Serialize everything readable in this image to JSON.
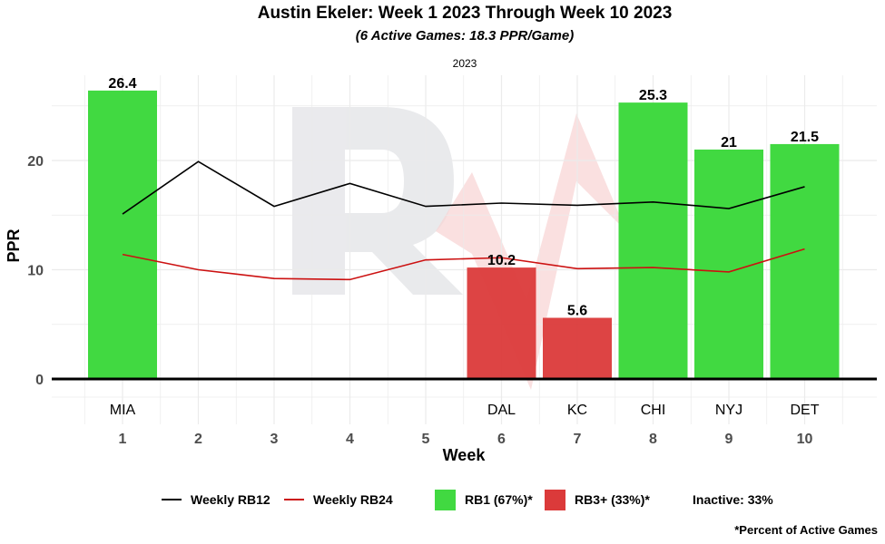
{
  "title": "Austin Ekeler: Week 1 2023 Through Week 10 2023",
  "subtitle": "(6 Active Games: 18.3 PPR/Game)",
  "facet_label": "2023",
  "footnote": "*Percent of Active Games",
  "colors": {
    "rb1": "#41d941",
    "rb3": "#db3a3a",
    "rb12_line": "#000000",
    "rb24_line": "#cc1111",
    "grid": "#ebebeb"
  },
  "legend": {
    "rb12": "Weekly RB12",
    "rb24": "Weekly RB24",
    "rb1": "RB1 (67%)*",
    "rb3": "RB3+ (33%)*",
    "inactive": "Inactive: 33%"
  },
  "chart_data": {
    "type": "bar",
    "xlabel": "Week",
    "ylabel": "PPR",
    "ylim": [
      0,
      27.5
    ],
    "yticks": [
      0,
      10,
      20
    ],
    "weeks": [
      1,
      2,
      3,
      4,
      5,
      6,
      7,
      8,
      9,
      10
    ],
    "opponents": [
      "MIA",
      "",
      "",
      "",
      "",
      "DAL",
      "KC",
      "CHI",
      "NYJ",
      "DET"
    ],
    "bars": [
      {
        "week": 1,
        "value": 26.4,
        "label": "26.4",
        "tier": "rb1"
      },
      {
        "week": 6,
        "value": 10.2,
        "label": "10.2",
        "tier": "rb3"
      },
      {
        "week": 7,
        "value": 5.6,
        "label": "5.6",
        "tier": "rb3"
      },
      {
        "week": 8,
        "value": 25.3,
        "label": "25.3",
        "tier": "rb1"
      },
      {
        "week": 9,
        "value": 21.0,
        "label": "21",
        "tier": "rb1"
      },
      {
        "week": 10,
        "value": 21.5,
        "label": "21.5",
        "tier": "rb1"
      }
    ],
    "series": [
      {
        "name": "Weekly RB12",
        "values": [
          15.1,
          19.9,
          15.8,
          17.9,
          15.8,
          16.1,
          15.9,
          16.2,
          15.6,
          17.6
        ]
      },
      {
        "name": "Weekly RB24",
        "values": [
          11.4,
          10.0,
          9.2,
          9.1,
          10.9,
          11.1,
          10.1,
          10.2,
          9.8,
          11.9
        ]
      }
    ],
    "grid": true,
    "legend_position": "bottom"
  }
}
